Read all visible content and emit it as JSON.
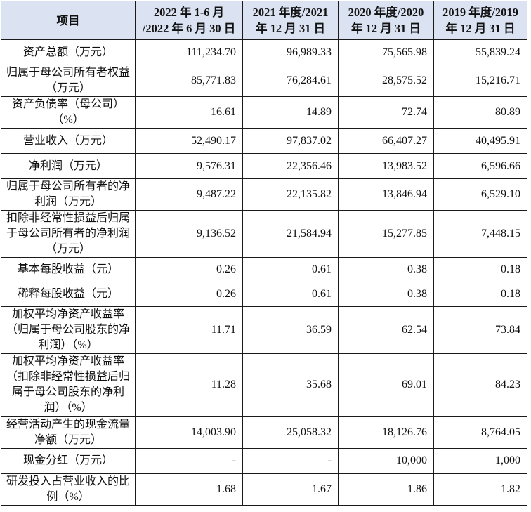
{
  "table": {
    "header": {
      "item": "项目",
      "periods": [
        {
          "line1": "2022 年 1-6 月",
          "line2": "/2022 年 6 月 30 日"
        },
        {
          "line1": "2021 年度/2021",
          "line2": "年 12 月 31 日"
        },
        {
          "line1": "2020 年度/2020",
          "line2": "年 12 月 31 日"
        },
        {
          "line1": "2019 年度/2019",
          "line2": "年 12 月 31 日"
        }
      ]
    },
    "rows": [
      {
        "label": "资产总额（万元）",
        "values": [
          "111,234.70",
          "96,989.33",
          "75,565.98",
          "55,839.24"
        ]
      },
      {
        "label": "归属于母公司所有者权益（万元）",
        "values": [
          "85,771.83",
          "76,284.61",
          "28,575.52",
          "15,216.71"
        ]
      },
      {
        "label": "资产负债率（母公司）（%）",
        "values": [
          "16.61",
          "14.89",
          "72.74",
          "80.89"
        ]
      },
      {
        "label": "营业收入（万元）",
        "values": [
          "52,490.17",
          "97,837.02",
          "66,407.27",
          "40,495.91"
        ]
      },
      {
        "label": "净利润（万元）",
        "values": [
          "9,576.31",
          "22,356.46",
          "13,983.52",
          "6,596.66"
        ]
      },
      {
        "label": "归属于母公司所有者的净利润（万元）",
        "values": [
          "9,487.22",
          "22,135.82",
          "13,846.94",
          "6,529.10"
        ]
      },
      {
        "label": "扣除非经常性损益后归属于母公司所有者的净利润（万元）",
        "values": [
          "9,136.52",
          "21,584.94",
          "15,277.85",
          "7,448.15"
        ]
      },
      {
        "label": "基本每股收益（元）",
        "values": [
          "0.26",
          "0.61",
          "0.38",
          "0.18"
        ]
      },
      {
        "label": "稀释每股收益（元）",
        "values": [
          "0.26",
          "0.61",
          "0.38",
          "0.18"
        ]
      },
      {
        "label": "加权平均净资产收益率（归属于母公司股东的净利润）（%）",
        "values": [
          "11.71",
          "36.59",
          "62.54",
          "73.84"
        ]
      },
      {
        "label": "加权平均净资产收益率（扣除非经常性损益后归属于母公司股东的净利润）（%）",
        "values": [
          "11.28",
          "35.68",
          "69.01",
          "84.23"
        ]
      },
      {
        "label": "经营活动产生的现金流量净额（万元）",
        "values": [
          "14,003.90",
          "25,058.32",
          "18,126.76",
          "8,764.05"
        ]
      },
      {
        "label": "现金分红（万元）",
        "values": [
          "-",
          "-",
          "10,000",
          "1,000"
        ]
      },
      {
        "label": "研发投入占营业收入的比例（%）",
        "values": [
          "1.68",
          "1.67",
          "1.86",
          "1.82"
        ]
      }
    ]
  },
  "colors": {
    "header_background": "#dbe3f2",
    "grid_line": "#1a1a1a",
    "text": "#111111"
  }
}
